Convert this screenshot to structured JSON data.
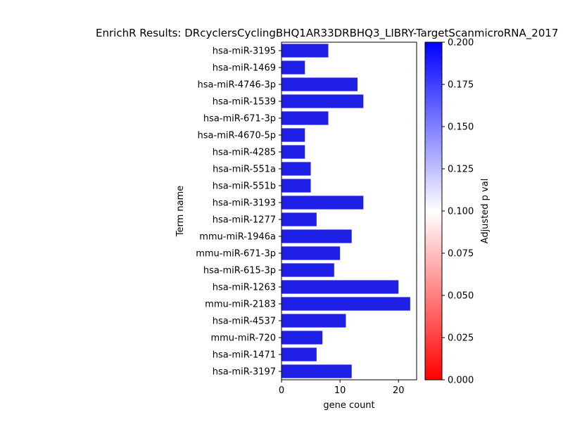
{
  "chart_data": {
    "type": "bar",
    "orientation": "horizontal",
    "title": "EnrichR Results: DRcyclersCyclingBHQ1AR33DRBHQ3_LIBRY-TargetScanmicroRNA_2017",
    "xlabel": "gene count",
    "ylabel": "Term name",
    "xlim": [
      0,
      23.1
    ],
    "xticks": [
      0,
      10,
      20
    ],
    "categories": [
      "hsa-miR-3195",
      "hsa-miR-1469",
      "hsa-miR-4746-3p",
      "hsa-miR-1539",
      "hsa-miR-671-3p",
      "hsa-miR-4670-5p",
      "hsa-miR-4285",
      "hsa-miR-551a",
      "hsa-miR-551b",
      "hsa-miR-3193",
      "hsa-miR-1277",
      "mmu-miR-1946a",
      "mmu-miR-671-3p",
      "hsa-miR-615-3p",
      "hsa-miR-1263",
      "mmu-miR-2183",
      "hsa-miR-4537",
      "mmu-miR-720",
      "hsa-miR-1471",
      "hsa-miR-3197"
    ],
    "values": [
      8,
      4,
      13,
      14,
      8,
      4,
      4,
      5,
      5,
      14,
      6,
      12,
      10,
      9,
      20,
      22,
      11,
      7,
      6,
      12
    ],
    "bar_color": "#1f1fe6",
    "colorbar": {
      "label": "Adjusted p val",
      "min": 0.0,
      "max": 0.2,
      "ticks": [
        "0.000",
        "0.025",
        "0.050",
        "0.075",
        "0.100",
        "0.125",
        "0.150",
        "0.175",
        "0.200"
      ],
      "colors": [
        "#ff0000",
        "#ffffff",
        "#0000ff"
      ]
    },
    "grid": false,
    "legend": "none"
  }
}
